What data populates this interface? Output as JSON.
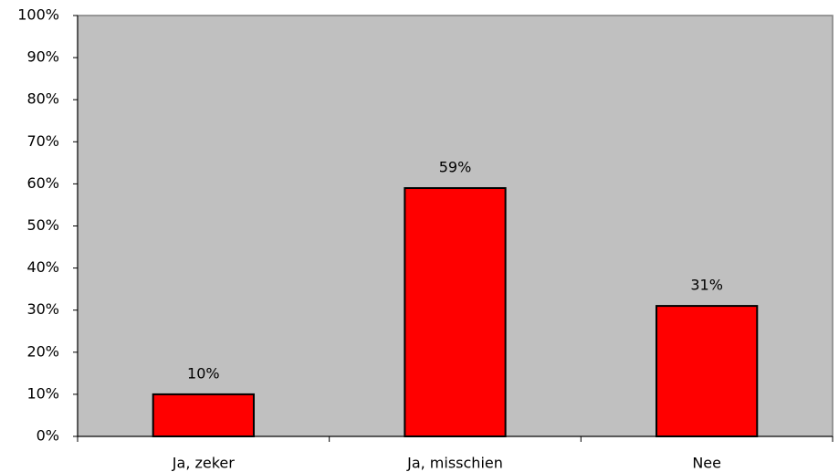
{
  "chart_data": {
    "type": "bar",
    "categories": [
      "Ja, zeker",
      "Ja, misschien",
      "Nee"
    ],
    "values": [
      10,
      59,
      31
    ],
    "value_labels": [
      "10%",
      "59%",
      "31%"
    ],
    "color": "#ff0000",
    "ylim": [
      0,
      100
    ],
    "yticks": [
      {
        "value": 0,
        "label": "0%"
      },
      {
        "value": 10,
        "label": "10%"
      },
      {
        "value": 20,
        "label": "20%"
      },
      {
        "value": 30,
        "label": "30%"
      },
      {
        "value": 40,
        "label": "40%"
      },
      {
        "value": 50,
        "label": "50%"
      },
      {
        "value": 60,
        "label": "60%"
      },
      {
        "value": 70,
        "label": "70%"
      },
      {
        "value": 80,
        "label": "80%"
      },
      {
        "value": 90,
        "label": "90%"
      },
      {
        "value": 100,
        "label": "100%"
      }
    ],
    "grid": false
  }
}
